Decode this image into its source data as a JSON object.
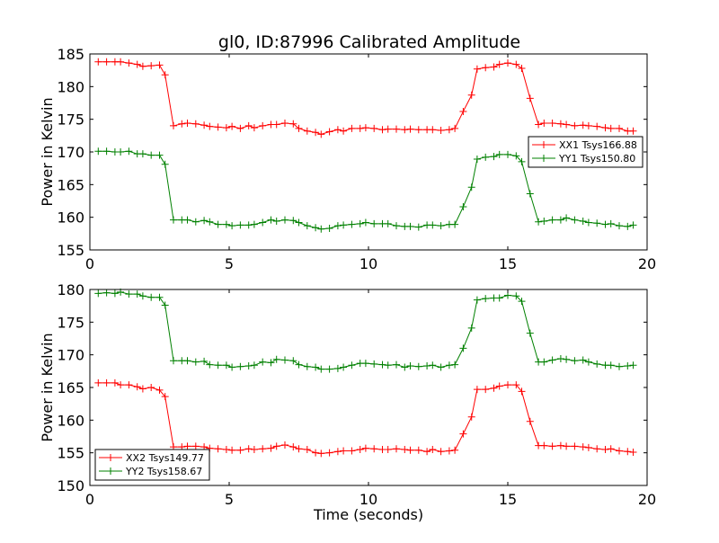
{
  "figure": {
    "title": "gl0, ID:87996 Calibrated Amplitude"
  },
  "chart_data": [
    {
      "type": "line",
      "title": "gl0, ID:87996 Calibrated Amplitude",
      "xlabel": "",
      "ylabel": "Power in Kelvin",
      "xlim": [
        0,
        20
      ],
      "ylim": [
        155,
        185
      ],
      "xticks": [
        0,
        5,
        10,
        15,
        20
      ],
      "yticks": [
        155,
        160,
        165,
        170,
        175,
        180,
        185
      ],
      "grid": false,
      "legend_position": "center-right",
      "x": [
        0.3,
        0.6,
        0.9,
        1.1,
        1.4,
        1.7,
        1.9,
        2.2,
        2.5,
        2.7,
        3.0,
        3.3,
        3.5,
        3.8,
        4.1,
        4.3,
        4.6,
        4.9,
        5.1,
        5.4,
        5.7,
        5.9,
        6.2,
        6.5,
        6.7,
        7.0,
        7.3,
        7.5,
        7.8,
        8.1,
        8.3,
        8.6,
        8.9,
        9.1,
        9.4,
        9.7,
        9.9,
        10.2,
        10.5,
        10.7,
        11.0,
        11.3,
        11.5,
        11.8,
        12.1,
        12.3,
        12.6,
        12.9,
        13.1,
        13.4,
        13.7,
        13.9,
        14.2,
        14.5,
        14.7,
        15.0,
        15.3,
        15.5,
        15.8,
        16.1,
        16.3,
        16.6,
        16.9,
        17.1,
        17.4,
        17.7,
        17.9,
        18.2,
        18.5,
        18.7,
        19.0,
        19.3,
        19.5
      ],
      "series": [
        {
          "name": "XX1 Tsys166.88",
          "color": "#ff0000",
          "values": [
            183.8,
            183.8,
            183.8,
            183.8,
            183.6,
            183.4,
            183.1,
            183.2,
            183.3,
            181.8,
            174.0,
            174.3,
            174.4,
            174.3,
            174.1,
            173.9,
            173.8,
            173.7,
            173.9,
            173.6,
            174.0,
            173.7,
            174.0,
            174.2,
            174.2,
            174.4,
            174.3,
            173.6,
            173.2,
            173.0,
            172.7,
            173.1,
            173.4,
            173.2,
            173.6,
            173.6,
            173.7,
            173.6,
            173.4,
            173.5,
            173.5,
            173.4,
            173.5,
            173.4,
            173.4,
            173.4,
            173.3,
            173.4,
            173.6,
            176.2,
            178.7,
            182.7,
            182.9,
            183.0,
            183.4,
            183.6,
            183.4,
            182.8,
            178.2,
            174.2,
            174.4,
            174.4,
            174.3,
            174.2,
            174.0,
            174.1,
            174.0,
            173.9,
            173.7,
            173.6,
            173.6,
            173.2,
            173.2
          ]
        },
        {
          "name": "YY1 Tsys150.80",
          "color": "#008000",
          "values": [
            170.1,
            170.1,
            170.0,
            170.0,
            170.1,
            169.7,
            169.7,
            169.5,
            169.5,
            168.1,
            159.6,
            159.6,
            159.6,
            159.3,
            159.5,
            159.3,
            158.9,
            158.9,
            158.7,
            158.8,
            158.8,
            158.9,
            159.2,
            159.6,
            159.4,
            159.6,
            159.5,
            159.2,
            158.7,
            158.4,
            158.2,
            158.3,
            158.7,
            158.8,
            158.9,
            159.0,
            159.2,
            159.0,
            159.0,
            159.0,
            158.7,
            158.6,
            158.6,
            158.5,
            158.8,
            158.8,
            158.7,
            158.9,
            158.9,
            161.6,
            164.6,
            168.9,
            169.2,
            169.3,
            169.6,
            169.6,
            169.4,
            168.5,
            163.6,
            159.3,
            159.4,
            159.6,
            159.6,
            159.9,
            159.6,
            159.4,
            159.2,
            159.1,
            158.9,
            159.0,
            158.7,
            158.6,
            158.8
          ]
        }
      ]
    },
    {
      "type": "line",
      "title": "",
      "xlabel": "Time (seconds)",
      "ylabel": "Power in Kelvin",
      "xlim": [
        0,
        20
      ],
      "ylim": [
        150,
        180
      ],
      "xticks": [
        0,
        5,
        10,
        15,
        20
      ],
      "yticks": [
        150,
        155,
        160,
        165,
        170,
        175,
        180
      ],
      "grid": false,
      "legend_position": "lower-left",
      "x": [
        0.3,
        0.6,
        0.9,
        1.1,
        1.4,
        1.7,
        1.9,
        2.2,
        2.5,
        2.7,
        3.0,
        3.3,
        3.5,
        3.8,
        4.1,
        4.3,
        4.6,
        4.9,
        5.1,
        5.4,
        5.7,
        5.9,
        6.2,
        6.5,
        6.7,
        7.0,
        7.3,
        7.5,
        7.8,
        8.1,
        8.3,
        8.6,
        8.9,
        9.1,
        9.4,
        9.7,
        9.9,
        10.2,
        10.5,
        10.7,
        11.0,
        11.3,
        11.5,
        11.8,
        12.1,
        12.3,
        12.6,
        12.9,
        13.1,
        13.4,
        13.7,
        13.9,
        14.2,
        14.5,
        14.7,
        15.0,
        15.3,
        15.5,
        15.8,
        16.1,
        16.3,
        16.6,
        16.9,
        17.1,
        17.4,
        17.7,
        17.9,
        18.2,
        18.5,
        18.7,
        19.0,
        19.3,
        19.5
      ],
      "series": [
        {
          "name": "XX2 Tsys149.77",
          "color": "#ff0000",
          "values": [
            165.7,
            165.7,
            165.7,
            165.4,
            165.4,
            165.1,
            164.8,
            165.0,
            164.6,
            163.6,
            155.9,
            155.9,
            156.0,
            156.0,
            155.9,
            155.7,
            155.6,
            155.5,
            155.4,
            155.4,
            155.6,
            155.5,
            155.6,
            155.7,
            156.0,
            156.2,
            155.9,
            155.6,
            155.5,
            155.0,
            154.9,
            155.0,
            155.2,
            155.3,
            155.3,
            155.5,
            155.7,
            155.6,
            155.5,
            155.5,
            155.6,
            155.5,
            155.4,
            155.4,
            155.2,
            155.5,
            155.2,
            155.3,
            155.4,
            157.9,
            160.5,
            164.7,
            164.7,
            164.9,
            165.2,
            165.4,
            165.4,
            164.4,
            159.8,
            156.1,
            156.1,
            156.0,
            156.1,
            156.0,
            156.0,
            155.9,
            155.8,
            155.6,
            155.5,
            155.6,
            155.3,
            155.2,
            155.1
          ]
        },
        {
          "name": "YY2 Tsys158.67",
          "color": "#008000",
          "values": [
            179.4,
            179.5,
            179.4,
            179.6,
            179.3,
            179.3,
            179.0,
            178.8,
            178.8,
            177.6,
            169.1,
            169.1,
            169.1,
            168.9,
            169.0,
            168.5,
            168.4,
            168.4,
            168.1,
            168.2,
            168.3,
            168.4,
            168.9,
            168.8,
            169.3,
            169.2,
            169.1,
            168.5,
            168.2,
            168.1,
            167.8,
            167.8,
            167.9,
            168.1,
            168.4,
            168.7,
            168.7,
            168.6,
            168.5,
            168.4,
            168.5,
            168.1,
            168.3,
            168.2,
            168.3,
            168.4,
            168.1,
            168.4,
            168.5,
            171.0,
            174.1,
            178.4,
            178.6,
            178.7,
            178.7,
            179.1,
            179.0,
            178.2,
            173.3,
            168.9,
            168.9,
            169.2,
            169.4,
            169.3,
            169.1,
            169.2,
            168.9,
            168.6,
            168.4,
            168.4,
            168.2,
            168.3,
            168.4
          ]
        }
      ]
    }
  ]
}
